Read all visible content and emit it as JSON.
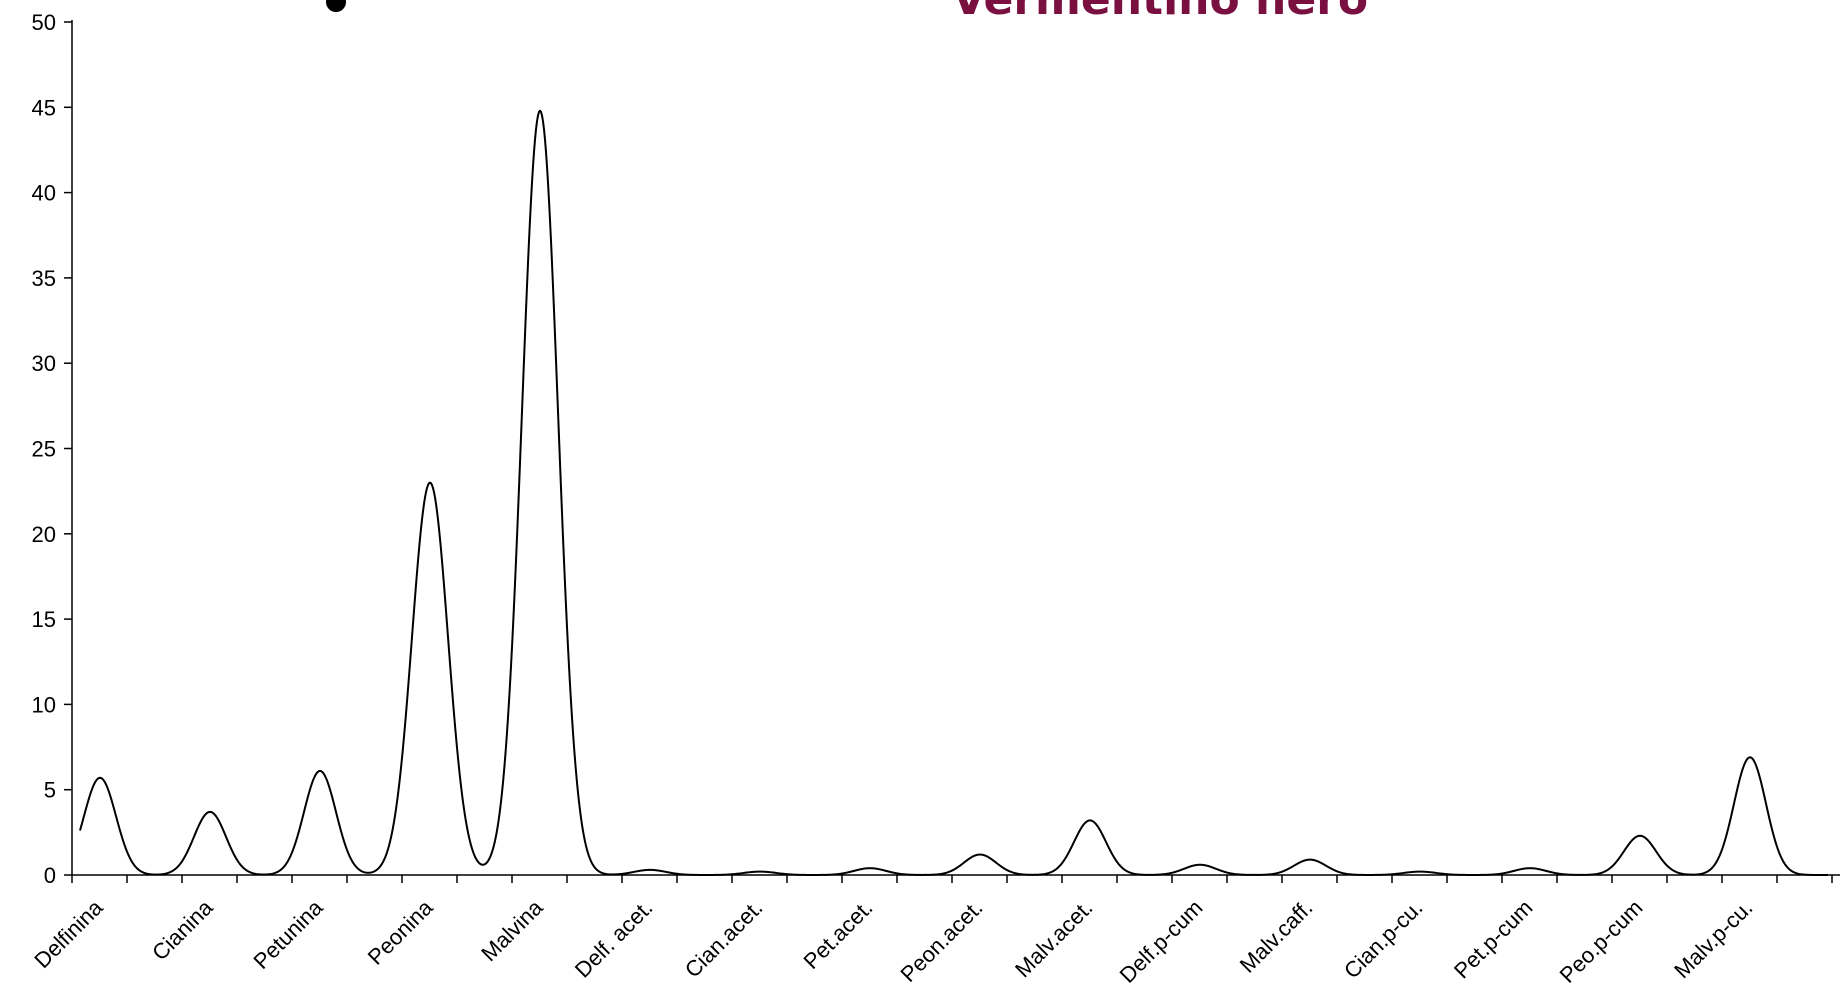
{
  "chart_data": {
    "type": "line",
    "title": "Vermentino nero",
    "title_color": "#7a1040",
    "line_color": "#000000",
    "ylim": [
      0,
      50
    ],
    "yticks": [
      0,
      5,
      10,
      15,
      20,
      25,
      30,
      35,
      40,
      45,
      50
    ],
    "grid": false,
    "categories": [
      "Delfinina",
      "Cianina",
      "Petunina",
      "Peonina",
      "Malvina",
      "Delf. acet.",
      "Cian.acet.",
      "Pet.acet.",
      "Peon.acet.",
      "Malv.acet.",
      "Delf.p-cum",
      "Malv.caff.",
      "Cian.p-cu.",
      "Pet.p-cum",
      "Peo.p-cum",
      "Malv.p-cu."
    ],
    "values": [
      5.7,
      3.7,
      6.1,
      23.0,
      44.8,
      0.3,
      0.2,
      0.4,
      1.2,
      3.2,
      0.6,
      0.9,
      0.2,
      0.4,
      2.3,
      6.9
    ]
  }
}
